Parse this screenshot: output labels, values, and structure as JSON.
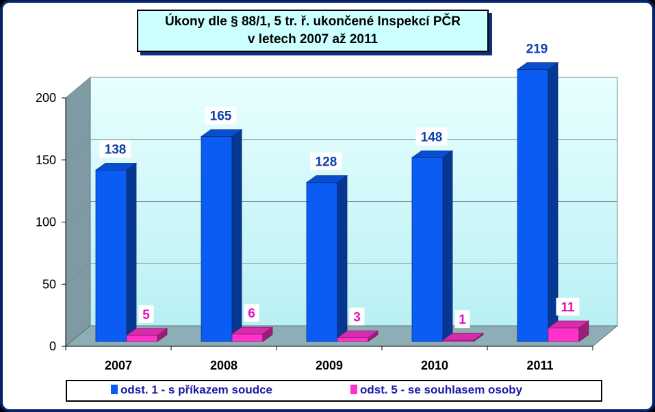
{
  "chart_data": {
    "type": "bar",
    "title": "Úkony dle § 88/1, 5 tr. ř. ukončené Inspekcí PČR",
    "subtitle": "v letech 2007 až 2011",
    "categories": [
      "2007",
      "2008",
      "2009",
      "2010",
      "2011"
    ],
    "series": [
      {
        "name": "odst. 1 - s příkazem soudce",
        "values": [
          138,
          165,
          128,
          148,
          219
        ],
        "color": "#0a5cf5"
      },
      {
        "name": "odst. 5 - se souhlasem osoby",
        "values": [
          5,
          6,
          3,
          1,
          11
        ],
        "color": "#ff33cc"
      }
    ],
    "yticks": [
      "0",
      "50",
      "100",
      "150",
      "200"
    ],
    "ylim": [
      0,
      200
    ],
    "grid": true,
    "legend_position": "bottom",
    "label_colors": [
      "#1040b0",
      "#e010c0"
    ]
  }
}
